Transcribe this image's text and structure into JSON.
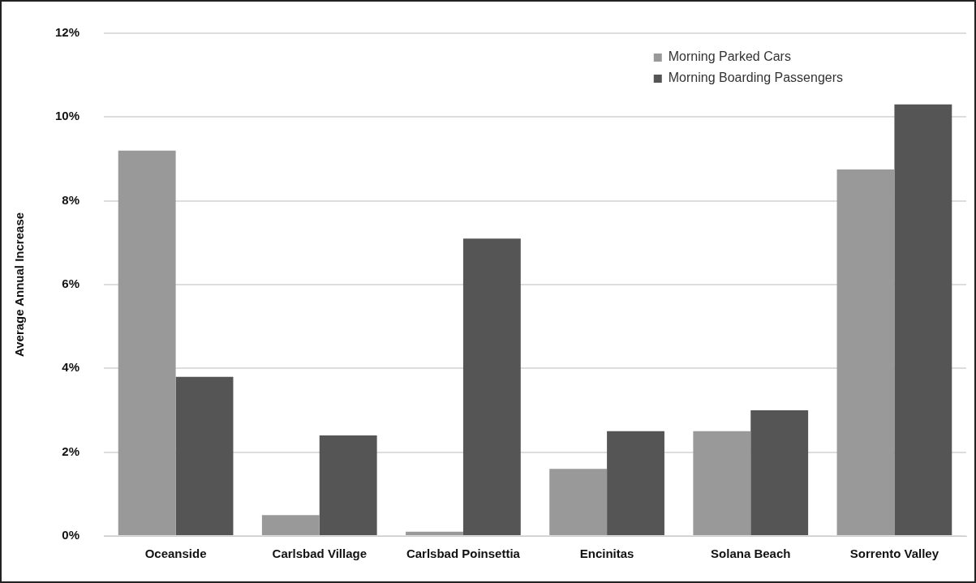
{
  "chart_data": {
    "type": "bar",
    "ylabel": "Average Annual Increase",
    "categories": [
      "Oceanside",
      "Carlsbad Village",
      "Carlsbad Poinsettia",
      "Encinitas",
      "Solana Beach",
      "Sorrento Valley"
    ],
    "series": [
      {
        "name": "Morning Parked Cars",
        "color": "#999999",
        "values": [
          9.2,
          0.5,
          0.1,
          1.6,
          2.5,
          8.75
        ]
      },
      {
        "name": "Morning Boarding Passengers",
        "color": "#555555",
        "values": [
          3.8,
          2.4,
          7.1,
          2.5,
          3.0,
          10.3
        ]
      }
    ],
    "ylim": [
      0,
      12
    ],
    "yticks": [
      {
        "value": 0,
        "label": "0%"
      },
      {
        "value": 2,
        "label": "2%"
      },
      {
        "value": 4,
        "label": "4%"
      },
      {
        "value": 6,
        "label": "6%"
      },
      {
        "value": 8,
        "label": "8%"
      },
      {
        "value": 10,
        "label": "10%"
      },
      {
        "value": 12,
        "label": "12%"
      }
    ],
    "grid": "y",
    "legend": "top right"
  }
}
